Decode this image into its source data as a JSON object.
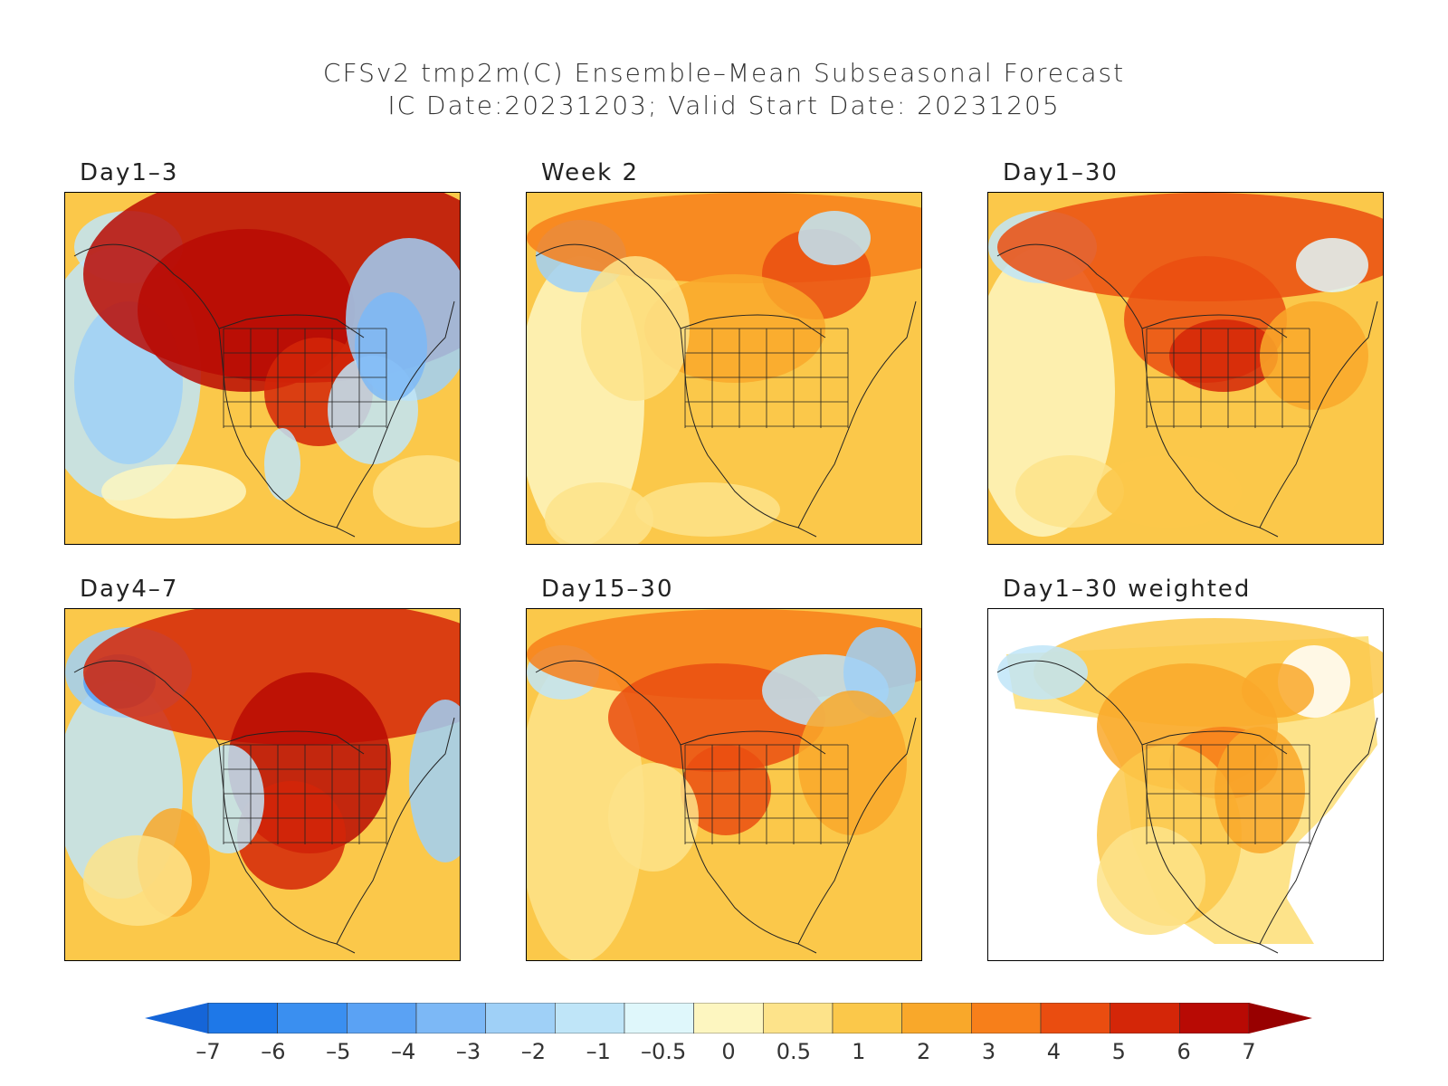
{
  "title": {
    "line1": "CFSv2 tmp2m(C) Ensemble–Mean Subseasonal Forecast",
    "line2": "IC Date:20231203; Valid Start Date: 20231205"
  },
  "panels": [
    {
      "label": "Day1–3",
      "pattern": "day1-3"
    },
    {
      "label": "Week 2",
      "pattern": "week2"
    },
    {
      "label": "Day1–30",
      "pattern": "day1-30"
    },
    {
      "label": "Day4–7",
      "pattern": "day4-7"
    },
    {
      "label": "Day15–30",
      "pattern": "day15-30"
    },
    {
      "label": "Day1–30 weighted",
      "pattern": "weighted"
    }
  ],
  "colorbar": {
    "labels": [
      "–7",
      "–6",
      "–5",
      "–4",
      "–3",
      "–2",
      "–1",
      "–0.5",
      "0",
      "0.5",
      "1",
      "2",
      "3",
      "4",
      "5",
      "6",
      "7"
    ],
    "colors": [
      "#1565d8",
      "#1e78e8",
      "#3a8ff0",
      "#5aa2f4",
      "#7cb8f6",
      "#9fd0f7",
      "#bfe5f8",
      "#dff7fb",
      "#fdf6c0",
      "#fde38a",
      "#fbc84a",
      "#f9a82a",
      "#f77f1a",
      "#ea4d10",
      "#d42608",
      "#b80a04",
      "#980000"
    ]
  }
}
